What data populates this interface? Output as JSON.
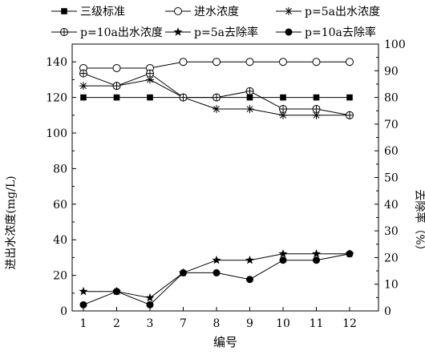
{
  "chart_data": {
    "type": "line",
    "categories": [
      "1",
      "2",
      "3",
      "7",
      "8",
      "9",
      "10",
      "11",
      "12"
    ],
    "xlabel": "编号",
    "ylabel_left": "进出水浓度(mg/L)",
    "ylabel_right": "去除率（%）",
    "ylim_left": [
      0,
      150
    ],
    "yticks_left": [
      "0",
      "20",
      "40",
      "60",
      "80",
      "100",
      "120",
      "140"
    ],
    "ylim_right": [
      0,
      100
    ],
    "yticks_right": [
      "0",
      "10",
      "20",
      "30",
      "40",
      "50",
      "60",
      "70",
      "80",
      "90",
      "100"
    ],
    "grid": false,
    "legend_position": "top",
    "series": [
      {
        "name": "三级标准",
        "axis": "left",
        "marker": "square-filled",
        "values": [
          120,
          120,
          120,
          120,
          120,
          120,
          120,
          120,
          120
        ]
      },
      {
        "name": "进水浓度",
        "axis": "left",
        "marker": "circle-open",
        "values": [
          136.5,
          136.5,
          136.5,
          140,
          140,
          140,
          140,
          140,
          140
        ]
      },
      {
        "name": "p=5a出水浓度",
        "axis": "left",
        "marker": "asterisk",
        "values": [
          126.5,
          126.5,
          130,
          120,
          113.5,
          113.5,
          110,
          110,
          110
        ]
      },
      {
        "name": "p=10a出水浓度",
        "axis": "left",
        "marker": "circle-cross",
        "values": [
          133.5,
          126.5,
          133.5,
          120,
          120,
          123.5,
          113.5,
          113.5,
          110
        ]
      },
      {
        "name": "p=5a去除率",
        "axis": "right",
        "marker": "star-filled",
        "values": [
          7.3,
          7.3,
          4.9,
          14.3,
          19,
          19,
          21.4,
          21.4,
          21.4
        ]
      },
      {
        "name": "p=10a去除率",
        "axis": "right",
        "marker": "circle-filled",
        "values": [
          2.3,
          7.3,
          2.3,
          14.3,
          14.3,
          11.8,
          19,
          19,
          21.4
        ]
      }
    ]
  }
}
